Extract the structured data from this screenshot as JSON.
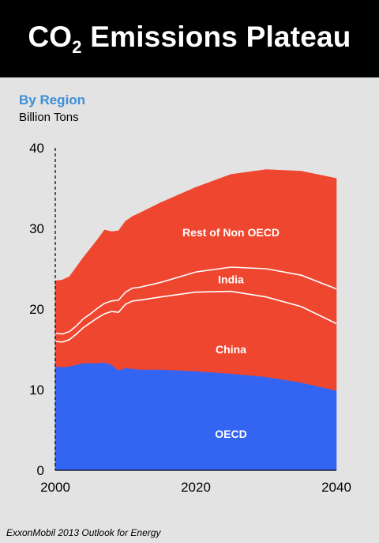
{
  "header": {
    "title_main": "CO",
    "title_sub": "2",
    "title_rest": " Emissions Plateau"
  },
  "chart_meta": {
    "subtitle": "By Region",
    "unit": "Billion Tons"
  },
  "source": "ExxonMobil 2013 Outlook for Energy",
  "colors": {
    "oecd": "#3465f2",
    "non_oecd": "#ef4630",
    "divider": "#ffffff",
    "background": "#e3e3e3"
  },
  "chart_data": {
    "type": "area",
    "stacked": true,
    "x": [
      2000,
      2001,
      2002,
      2003,
      2004,
      2005,
      2006,
      2007,
      2008,
      2009,
      2010,
      2011,
      2012,
      2015,
      2020,
      2025,
      2030,
      2035,
      2040
    ],
    "series": [
      {
        "name": "OECD",
        "values": [
          12.9,
          12.8,
          12.9,
          13.1,
          13.3,
          13.3,
          13.3,
          13.4,
          13.1,
          12.4,
          12.7,
          12.6,
          12.5,
          12.5,
          12.3,
          12.0,
          11.6,
          10.9,
          9.9
        ]
      },
      {
        "name": "China",
        "values": [
          3.1,
          3.1,
          3.3,
          3.8,
          4.4,
          5.0,
          5.6,
          6.0,
          6.6,
          7.2,
          7.9,
          8.4,
          8.6,
          9.0,
          9.8,
          10.2,
          9.9,
          9.4,
          8.3
        ]
      },
      {
        "name": "India",
        "values": [
          1.0,
          1.0,
          1.0,
          1.0,
          1.1,
          1.1,
          1.2,
          1.3,
          1.3,
          1.5,
          1.5,
          1.6,
          1.6,
          1.8,
          2.5,
          3.0,
          3.5,
          3.9,
          4.3
        ]
      },
      {
        "name": "Rest of Non OECD",
        "values": [
          6.5,
          6.7,
          6.8,
          7.3,
          7.6,
          8.1,
          8.5,
          9.1,
          8.6,
          8.6,
          8.8,
          8.9,
          9.2,
          9.9,
          10.5,
          11.5,
          12.3,
          12.9,
          13.7
        ]
      }
    ],
    "xlim": [
      2000,
      2040
    ],
    "ylim": [
      0,
      40
    ],
    "yticks": [
      0,
      10,
      20,
      30,
      40
    ],
    "xticks": [
      2000,
      2020,
      2040
    ],
    "labels": [
      {
        "text": "OECD",
        "x": 2025,
        "y": 4.5
      },
      {
        "text": "China",
        "x": 2025,
        "y": 15.0
      },
      {
        "text": "India",
        "x": 2025,
        "y": 23.7
      },
      {
        "text": "Rest of Non OECD",
        "x": 2025,
        "y": 29.5
      }
    ],
    "grid": false
  }
}
